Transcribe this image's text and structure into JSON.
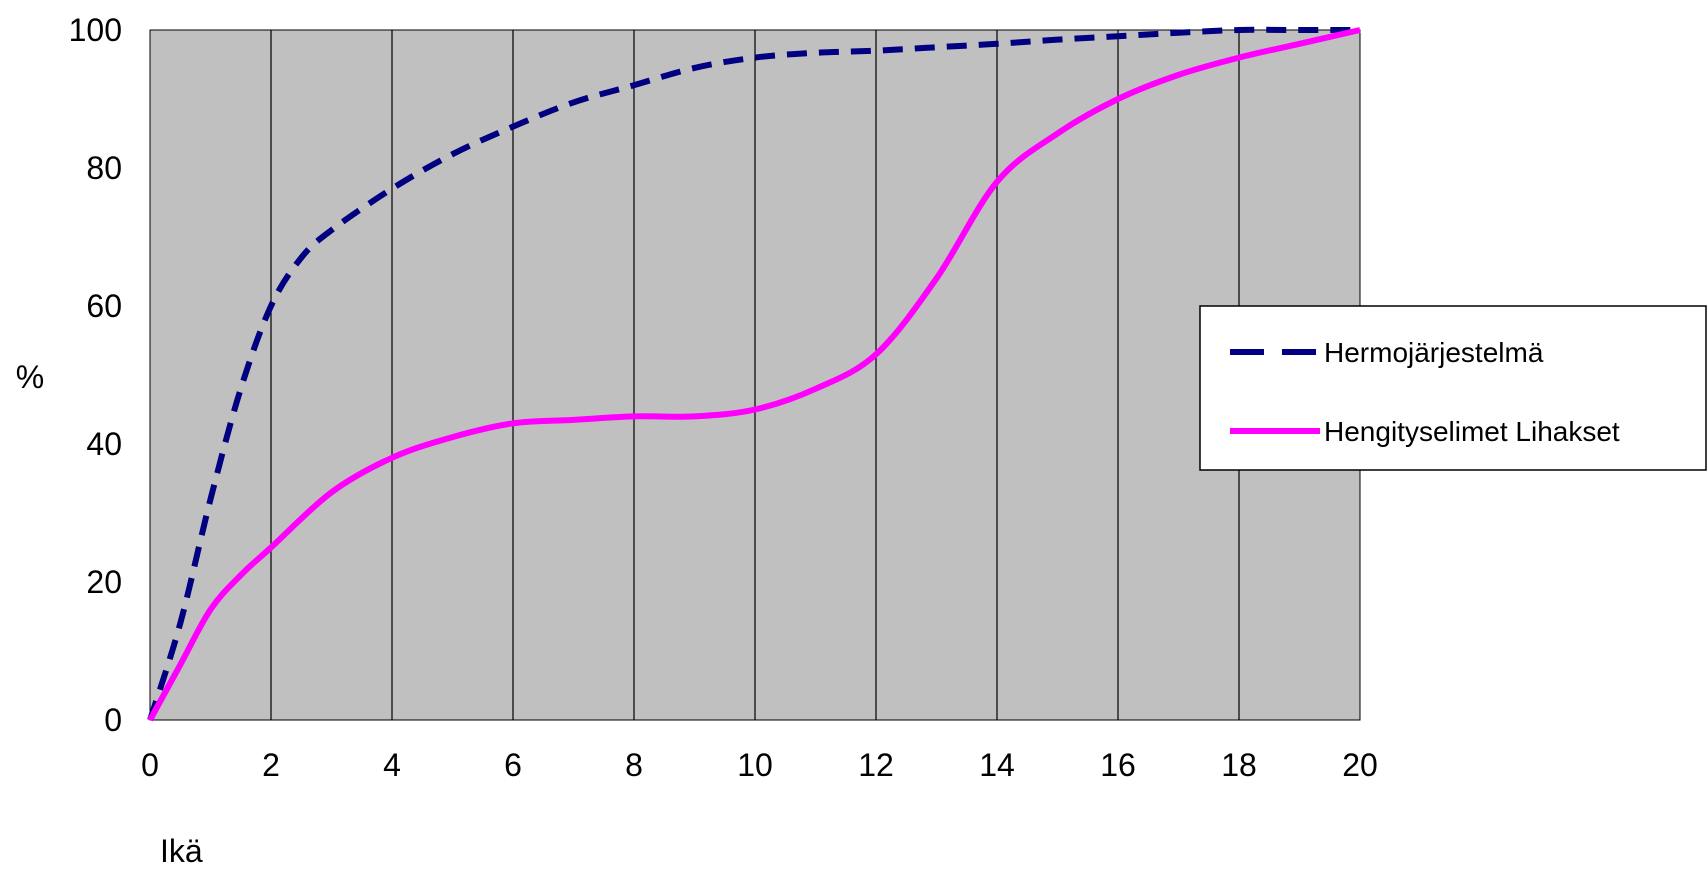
{
  "chart_data": {
    "type": "line",
    "title": "",
    "xlabel": "Ikä",
    "ylabel": "%",
    "xlim": [
      0,
      20
    ],
    "ylim": [
      0,
      100
    ],
    "x_ticks": [
      "0",
      "2",
      "4",
      "6",
      "8",
      "10",
      "12",
      "14",
      "16",
      "18",
      "20"
    ],
    "y_ticks": [
      "0",
      "20",
      "40",
      "60",
      "80",
      "100"
    ],
    "grid": "vertical",
    "plot_background": "#c0c0c0",
    "legend_position": "right",
    "series": [
      {
        "name": "Hermojärjestelmä",
        "color": "#000080",
        "style": "dashed",
        "x": [
          0,
          0.5,
          1,
          1.5,
          2,
          2.5,
          3,
          4,
          5,
          6,
          7,
          8,
          9,
          10,
          11,
          12,
          13,
          14,
          15,
          16,
          17,
          18,
          19,
          20
        ],
        "y": [
          0,
          14,
          32,
          48,
          60,
          67,
          71,
          77,
          82,
          86,
          89.5,
          92,
          94.5,
          96,
          96.7,
          97,
          97.5,
          98,
          98.6,
          99.1,
          99.6,
          100,
          100,
          100
        ]
      },
      {
        "name": "Hengityselimet Lihakset",
        "color": "#ff00ff",
        "style": "solid",
        "x": [
          0,
          0.5,
          1,
          1.5,
          2,
          3,
          4,
          5,
          6,
          7,
          8,
          9,
          10,
          11,
          12,
          13,
          14,
          15,
          16,
          17,
          18,
          19,
          20
        ],
        "y": [
          0,
          8,
          16,
          21,
          25,
          33,
          38,
          41,
          43,
          43.5,
          44,
          44,
          45,
          48,
          53,
          64,
          78,
          85,
          90,
          93.5,
          96,
          98,
          100
        ]
      }
    ]
  }
}
